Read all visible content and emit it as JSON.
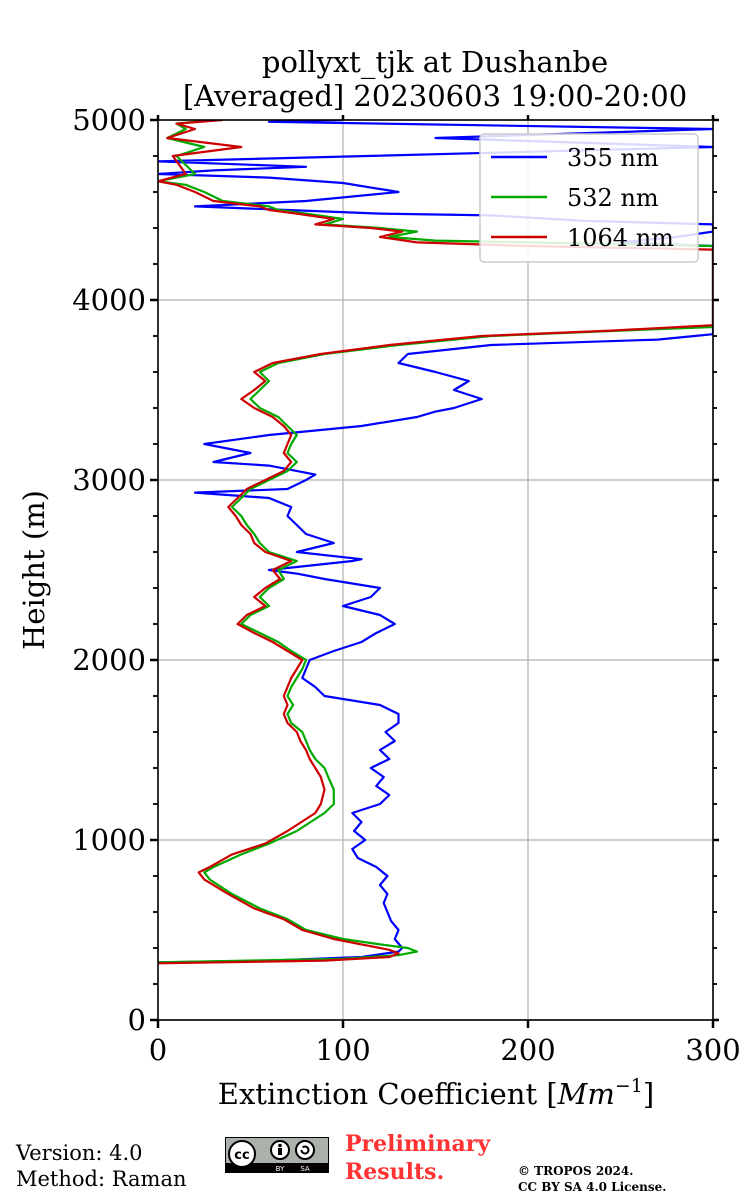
{
  "chart_data": {
    "type": "line",
    "title_line1": "pollyxt_tjk at Dushanbe",
    "title_line2": "[Averaged] 20230603 19:00-20:00",
    "xlabel": "Extinction Coefficient [",
    "xlabel_unit": "Mm",
    "xlabel_exp": "−1",
    "xlabel_end": "]",
    "ylabel": "Height (m)",
    "xlim": [
      0,
      300
    ],
    "ylim": [
      0,
      5000
    ],
    "xticks": [
      0,
      100,
      200,
      300
    ],
    "yticks": [
      0,
      1000,
      2000,
      3000,
      4000,
      5000
    ],
    "grid": true,
    "legend_position": "top-right",
    "series": [
      {
        "name": "355 nm",
        "color": "#0000ff",
        "points": [
          [
            0,
            320
          ],
          [
            60,
            330
          ],
          [
            110,
            350
          ],
          [
            130,
            380
          ],
          [
            132,
            400
          ],
          [
            128,
            450
          ],
          [
            130,
            500
          ],
          [
            126,
            550
          ],
          [
            124,
            600
          ],
          [
            122,
            650
          ],
          [
            124,
            700
          ],
          [
            120,
            750
          ],
          [
            124,
            800
          ],
          [
            118,
            850
          ],
          [
            108,
            900
          ],
          [
            105,
            950
          ],
          [
            112,
            1000
          ],
          [
            106,
            1050
          ],
          [
            110,
            1100
          ],
          [
            105,
            1150
          ],
          [
            120,
            1200
          ],
          [
            125,
            1250
          ],
          [
            118,
            1300
          ],
          [
            122,
            1350
          ],
          [
            115,
            1400
          ],
          [
            125,
            1450
          ],
          [
            120,
            1500
          ],
          [
            128,
            1550
          ],
          [
            123,
            1600
          ],
          [
            130,
            1650
          ],
          [
            130,
            1700
          ],
          [
            120,
            1750
          ],
          [
            90,
            1800
          ],
          [
            85,
            1850
          ],
          [
            78,
            1900
          ],
          [
            80,
            1950
          ],
          [
            82,
            2000
          ],
          [
            95,
            2050
          ],
          [
            110,
            2100
          ],
          [
            118,
            2150
          ],
          [
            128,
            2200
          ],
          [
            120,
            2250
          ],
          [
            100,
            2300
          ],
          [
            115,
            2350
          ],
          [
            120,
            2400
          ],
          [
            90,
            2450
          ],
          [
            75,
            2480
          ],
          [
            60,
            2500
          ],
          [
            105,
            2550
          ],
          [
            110,
            2560
          ],
          [
            75,
            2600
          ],
          [
            95,
            2650
          ],
          [
            80,
            2700
          ],
          [
            75,
            2750
          ],
          [
            70,
            2800
          ],
          [
            72,
            2850
          ],
          [
            60,
            2900
          ],
          [
            20,
            2930
          ],
          [
            70,
            2950
          ],
          [
            80,
            3000
          ],
          [
            85,
            3030
          ],
          [
            60,
            3080
          ],
          [
            30,
            3100
          ],
          [
            50,
            3150
          ],
          [
            25,
            3200
          ],
          [
            60,
            3250
          ],
          [
            90,
            3280
          ],
          [
            110,
            3300
          ],
          [
            140,
            3350
          ],
          [
            150,
            3380
          ],
          [
            160,
            3400
          ],
          [
            175,
            3450
          ],
          [
            160,
            3500
          ],
          [
            168,
            3550
          ],
          [
            150,
            3600
          ],
          [
            130,
            3650
          ],
          [
            135,
            3700
          ],
          [
            180,
            3750
          ],
          [
            270,
            3780
          ],
          [
            290,
            3800
          ],
          [
            300,
            3810
          ],
          [
            300,
            4300
          ],
          [
            250,
            4320
          ],
          [
            280,
            4350
          ],
          [
            300,
            4380
          ],
          [
            300,
            4420
          ],
          [
            230,
            4440
          ],
          [
            180,
            4470
          ],
          [
            120,
            4480
          ],
          [
            70,
            4500
          ],
          [
            20,
            4520
          ],
          [
            80,
            4550
          ],
          [
            130,
            4600
          ],
          [
            100,
            4650
          ],
          [
            60,
            4680
          ],
          [
            0,
            4700
          ],
          [
            30,
            4720
          ],
          [
            80,
            4740
          ],
          [
            0,
            4770
          ],
          [
            300,
            4850
          ],
          [
            150,
            4900
          ],
          [
            300,
            4950
          ],
          [
            60,
            4990
          ],
          [
            100,
            5000
          ]
        ]
      },
      {
        "name": "532 nm",
        "color": "#00aa00",
        "points": [
          [
            0,
            320
          ],
          [
            100,
            340
          ],
          [
            130,
            360
          ],
          [
            140,
            380
          ],
          [
            135,
            400
          ],
          [
            120,
            420
          ],
          [
            100,
            450
          ],
          [
            80,
            500
          ],
          [
            70,
            560
          ],
          [
            55,
            620
          ],
          [
            40,
            700
          ],
          [
            28,
            780
          ],
          [
            25,
            820
          ],
          [
            30,
            850
          ],
          [
            45,
            920
          ],
          [
            60,
            980
          ],
          [
            75,
            1050
          ],
          [
            90,
            1150
          ],
          [
            95,
            1200
          ],
          [
            95,
            1280
          ],
          [
            92,
            1350
          ],
          [
            90,
            1400
          ],
          [
            85,
            1450
          ],
          [
            82,
            1500
          ],
          [
            80,
            1550
          ],
          [
            78,
            1600
          ],
          [
            72,
            1650
          ],
          [
            70,
            1700
          ],
          [
            73,
            1750
          ],
          [
            70,
            1800
          ],
          [
            72,
            1850
          ],
          [
            75,
            1900
          ],
          [
            78,
            1950
          ],
          [
            80,
            2000
          ],
          [
            72,
            2050
          ],
          [
            65,
            2100
          ],
          [
            55,
            2150
          ],
          [
            45,
            2200
          ],
          [
            50,
            2250
          ],
          [
            60,
            2300
          ],
          [
            55,
            2350
          ],
          [
            60,
            2400
          ],
          [
            68,
            2450
          ],
          [
            65,
            2500
          ],
          [
            75,
            2550
          ],
          [
            60,
            2600
          ],
          [
            55,
            2650
          ],
          [
            52,
            2700
          ],
          [
            48,
            2750
          ],
          [
            45,
            2800
          ],
          [
            40,
            2850
          ],
          [
            45,
            2900
          ],
          [
            50,
            2950
          ],
          [
            60,
            3000
          ],
          [
            70,
            3050
          ],
          [
            75,
            3100
          ],
          [
            70,
            3150
          ],
          [
            72,
            3200
          ],
          [
            75,
            3250
          ],
          [
            70,
            3300
          ],
          [
            65,
            3350
          ],
          [
            55,
            3400
          ],
          [
            50,
            3450
          ],
          [
            55,
            3500
          ],
          [
            60,
            3550
          ],
          [
            55,
            3600
          ],
          [
            65,
            3650
          ],
          [
            90,
            3700
          ],
          [
            130,
            3750
          ],
          [
            180,
            3800
          ],
          [
            250,
            3830
          ],
          [
            300,
            3850
          ],
          [
            300,
            4300
          ],
          [
            200,
            4320
          ],
          [
            150,
            4330
          ],
          [
            125,
            4350
          ],
          [
            140,
            4380
          ],
          [
            120,
            4400
          ],
          [
            90,
            4420
          ],
          [
            100,
            4450
          ],
          [
            80,
            4480
          ],
          [
            65,
            4500
          ],
          [
            60,
            4520
          ],
          [
            35,
            4550
          ],
          [
            25,
            4600
          ],
          [
            15,
            4640
          ],
          [
            0,
            4660
          ],
          [
            20,
            4700
          ],
          [
            10,
            4800
          ],
          [
            25,
            4850
          ],
          [
            5,
            4900
          ],
          [
            15,
            4950
          ],
          [
            10,
            4980
          ],
          [
            30,
            5000
          ]
        ]
      },
      {
        "name": "1064 nm",
        "color": "#cc0000",
        "points": [
          [
            0,
            315
          ],
          [
            90,
            330
          ],
          [
            125,
            350
          ],
          [
            130,
            370
          ],
          [
            125,
            390
          ],
          [
            110,
            420
          ],
          [
            95,
            450
          ],
          [
            78,
            500
          ],
          [
            68,
            560
          ],
          [
            52,
            620
          ],
          [
            38,
            700
          ],
          [
            25,
            780
          ],
          [
            22,
            820
          ],
          [
            28,
            850
          ],
          [
            40,
            920
          ],
          [
            58,
            980
          ],
          [
            70,
            1050
          ],
          [
            85,
            1150
          ],
          [
            88,
            1200
          ],
          [
            90,
            1280
          ],
          [
            88,
            1350
          ],
          [
            85,
            1400
          ],
          [
            82,
            1450
          ],
          [
            80,
            1500
          ],
          [
            77,
            1550
          ],
          [
            75,
            1600
          ],
          [
            70,
            1650
          ],
          [
            68,
            1700
          ],
          [
            70,
            1750
          ],
          [
            68,
            1800
          ],
          [
            70,
            1850
          ],
          [
            72,
            1900
          ],
          [
            75,
            1950
          ],
          [
            78,
            2000
          ],
          [
            70,
            2050
          ],
          [
            62,
            2100
          ],
          [
            52,
            2150
          ],
          [
            43,
            2200
          ],
          [
            48,
            2250
          ],
          [
            58,
            2300
          ],
          [
            52,
            2350
          ],
          [
            58,
            2400
          ],
          [
            66,
            2450
          ],
          [
            62,
            2500
          ],
          [
            72,
            2550
          ],
          [
            58,
            2600
          ],
          [
            52,
            2650
          ],
          [
            50,
            2700
          ],
          [
            45,
            2750
          ],
          [
            42,
            2800
          ],
          [
            38,
            2850
          ],
          [
            43,
            2900
          ],
          [
            48,
            2950
          ],
          [
            58,
            3000
          ],
          [
            68,
            3050
          ],
          [
            72,
            3100
          ],
          [
            68,
            3150
          ],
          [
            70,
            3200
          ],
          [
            72,
            3250
          ],
          [
            68,
            3300
          ],
          [
            62,
            3350
          ],
          [
            52,
            3400
          ],
          [
            45,
            3450
          ],
          [
            52,
            3500
          ],
          [
            58,
            3550
          ],
          [
            52,
            3600
          ],
          [
            62,
            3650
          ],
          [
            88,
            3700
          ],
          [
            125,
            3750
          ],
          [
            175,
            3800
          ],
          [
            245,
            3830
          ],
          [
            300,
            3860
          ],
          [
            300,
            4280
          ],
          [
            200,
            4300
          ],
          [
            140,
            4320
          ],
          [
            120,
            4350
          ],
          [
            132,
            4380
          ],
          [
            115,
            4400
          ],
          [
            85,
            4420
          ],
          [
            95,
            4450
          ],
          [
            75,
            4480
          ],
          [
            60,
            4500
          ],
          [
            55,
            4520
          ],
          [
            30,
            4550
          ],
          [
            20,
            4600
          ],
          [
            10,
            4640
          ],
          [
            0,
            4660
          ],
          [
            15,
            4700
          ],
          [
            8,
            4800
          ],
          [
            45,
            4850
          ],
          [
            5,
            4900
          ],
          [
            20,
            4950
          ],
          [
            10,
            4980
          ],
          [
            35,
            5000
          ]
        ]
      }
    ]
  },
  "footer": {
    "version": "Version: 4.0",
    "method": "Method: Raman",
    "preliminary_line1": "Preliminary",
    "preliminary_line2": "Results.",
    "copyright_line1": "© TROPOS 2024.",
    "copyright_line2": "CC BY SA 4.0 License.",
    "cc_label": "cc",
    "cc_by": "BY",
    "cc_sa": "SA"
  }
}
